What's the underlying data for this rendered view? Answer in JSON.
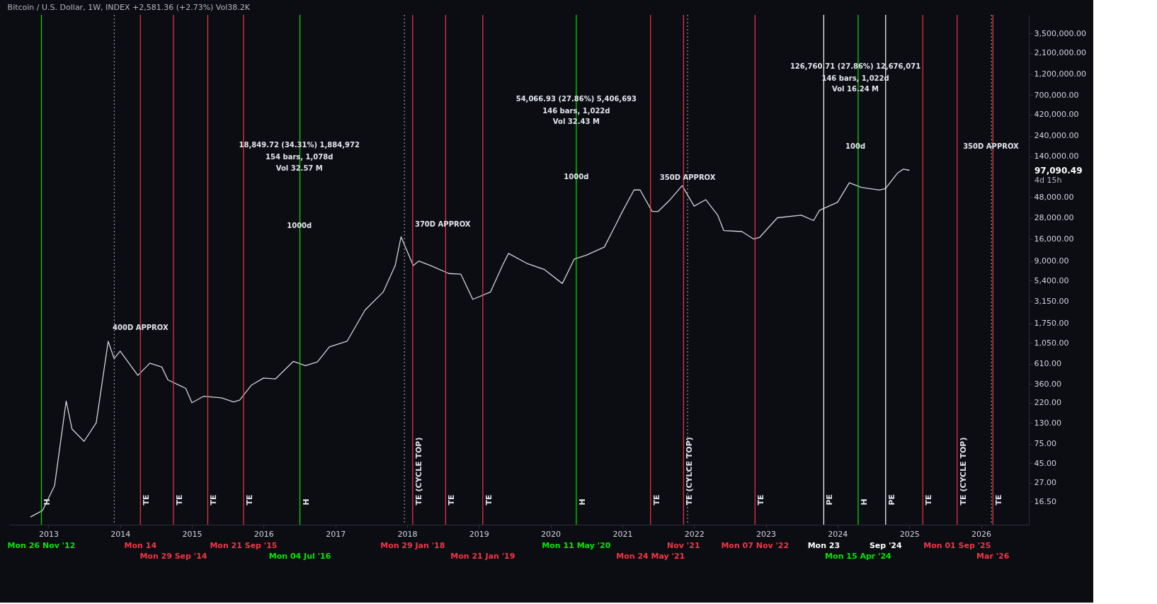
{
  "chart_data": {
    "type": "line",
    "title": "Bitcoin / U.S. Dollar, 1W, INDEX  +2,581.36 (+2.73%)  Vol38.2K",
    "x": [
      "2012-10",
      "2012-12",
      "2013-02",
      "2013-04",
      "2013-05",
      "2013-07",
      "2013-09",
      "2013-11",
      "2013-12",
      "2014-01",
      "2014-03",
      "2014-04",
      "2014-06",
      "2014-08",
      "2014-09",
      "2014-12",
      "2015-01",
      "2015-03",
      "2015-06",
      "2015-08",
      "2015-09",
      "2015-11",
      "2016-01",
      "2016-03",
      "2016-06",
      "2016-08",
      "2016-10",
      "2016-12",
      "2017-03",
      "2017-06",
      "2017-09",
      "2017-11",
      "2017-12",
      "2018-02",
      "2018-03",
      "2018-05",
      "2018-08",
      "2018-10",
      "2018-12",
      "2019-03",
      "2019-05",
      "2019-06",
      "2019-09",
      "2019-12",
      "2020-03",
      "2020-05",
      "2020-07",
      "2020-10",
      "2020-12",
      "2021-01",
      "2021-03",
      "2021-04",
      "2021-06",
      "2021-07",
      "2021-09",
      "2021-11",
      "2022-01",
      "2022-03",
      "2022-05",
      "2022-06",
      "2022-09",
      "2022-11",
      "2022-12",
      "2023-03",
      "2023-07",
      "2023-09",
      "2023-10",
      "2024-01",
      "2024-03",
      "2024-05",
      "2024-08",
      "2024-09",
      "2024-11",
      "2024-12",
      "2025-01"
    ],
    "series": [
      {
        "color": "#d1d4dc",
        "values": [
          11,
          13,
          25,
          230,
          110,
          80,
          130,
          1100,
          700,
          850,
          560,
          450,
          620,
          560,
          400,
          320,
          220,
          260,
          250,
          225,
          235,
          350,
          420,
          410,
          650,
          580,
          640,
          950,
          1100,
          2500,
          4000,
          8000,
          17000,
          8000,
          9000,
          8000,
          6500,
          6400,
          3300,
          4000,
          8000,
          11000,
          8500,
          7200,
          5000,
          9500,
          10500,
          13000,
          24000,
          33000,
          58000,
          58000,
          33000,
          33000,
          45000,
          65000,
          38000,
          45000,
          30000,
          20000,
          19500,
          16000,
          16800,
          28000,
          30000,
          26000,
          34000,
          42000,
          70000,
          62000,
          58000,
          60000,
          90000,
          100000,
          97090.49
        ]
      }
    ],
    "xlim": [
      "2012-06-15",
      "2026-09-01"
    ],
    "ylim": [
      9,
      5700000
    ],
    "log": "y",
    "yticks": [
      {
        "value": 16.5,
        "label": "16.50"
      },
      {
        "value": 27,
        "label": "27.00"
      },
      {
        "value": 45,
        "label": "45.00"
      },
      {
        "value": 75,
        "label": "75.00"
      },
      {
        "value": 130,
        "label": "130.00"
      },
      {
        "value": 220,
        "label": "220.00"
      },
      {
        "value": 360,
        "label": "360.00"
      },
      {
        "value": 610,
        "label": "610.00"
      },
      {
        "value": 1050,
        "label": "1,050.00"
      },
      {
        "value": 1750,
        "label": "1,750.00"
      },
      {
        "value": 3150,
        "label": "3,150.00"
      },
      {
        "value": 5400,
        "label": "5,400.00"
      },
      {
        "value": 9000,
        "label": "9,000.00"
      },
      {
        "value": 16000,
        "label": "16,000.00"
      },
      {
        "value": 28000,
        "label": "28,000.00"
      },
      {
        "value": 48000,
        "label": "48,000.00"
      },
      {
        "value": 140000,
        "label": "140,000.00"
      },
      {
        "value": 240000,
        "label": "240,000.00"
      },
      {
        "value": 420000,
        "label": "420,000.00"
      },
      {
        "value": 700000,
        "label": "700,000.00"
      },
      {
        "value": 1200000,
        "label": "1,200,000.00"
      },
      {
        "value": 2100000,
        "label": "2,100,000.00"
      },
      {
        "value": 3500000,
        "label": "3,500,000.00"
      }
    ],
    "xticks": [
      {
        "value": "2013-01-01",
        "label": "2013"
      },
      {
        "value": "2014-01-01",
        "label": "2014"
      },
      {
        "value": "2015-01-01",
        "label": "2015"
      },
      {
        "value": "2016-01-01",
        "label": "2016"
      },
      {
        "value": "2017-01-01",
        "label": "2017"
      },
      {
        "value": "2018-01-01",
        "label": "2018"
      },
      {
        "value": "2019-01-01",
        "label": "2019"
      },
      {
        "value": "2020-01-01",
        "label": "2020"
      },
      {
        "value": "2021-01-01",
        "label": "2021"
      },
      {
        "value": "2022-01-01",
        "label": "2022"
      },
      {
        "value": "2023-01-01",
        "label": "2023"
      },
      {
        "value": "2024-01-01",
        "label": "2024"
      },
      {
        "value": "2025-01-01",
        "label": "2025"
      },
      {
        "value": "2026-01-01",
        "label": "2026"
      }
    ],
    "grid": false,
    "line_style": "solid",
    "ref_lines": [
      {
        "axis": "x",
        "value": "2012-11-26",
        "label": "Mon 26 Nov '12",
        "color": "#00e600"
      },
      {
        "axis": "x",
        "value": "2013-12-02",
        "label": null,
        "color": "#9598a1",
        "line_style": "dotted"
      },
      {
        "axis": "x",
        "value": "2014-04-14",
        "label": "Mon 14",
        "color": "#f23645"
      },
      {
        "axis": "x",
        "value": "2014-09-29",
        "label": "Mon 29 Sep '14",
        "color": "#f23645"
      },
      {
        "axis": "x",
        "value": "2015-03-23",
        "label": null,
        "color": "#f23645"
      },
      {
        "axis": "x",
        "value": "2015-09-21",
        "label": "Mon 21 Sep '15",
        "color": "#f23645"
      },
      {
        "axis": "x",
        "value": "2016-07-04",
        "label": "Mon 04 Jul '16",
        "color": "#00e600"
      },
      {
        "axis": "x",
        "value": "2017-12-18",
        "label": null,
        "color": "#9598a1",
        "line_style": "dotted"
      },
      {
        "axis": "x",
        "value": "2018-01-29",
        "label": "Mon 29 Jan '18",
        "color": "#f23645"
      },
      {
        "axis": "x",
        "value": "2018-07-16",
        "label": null,
        "color": "#f23645"
      },
      {
        "axis": "x",
        "value": "2019-01-21",
        "label": "Mon 21 Jan '19",
        "color": "#f23645"
      },
      {
        "axis": "x",
        "value": "2020-05-11",
        "label": "Mon 11 May '20",
        "color": "#00e600"
      },
      {
        "axis": "x",
        "value": "2021-05-24",
        "label": "Mon 24 May '21",
        "color": "#f23645"
      },
      {
        "axis": "x",
        "value": "2021-11-08",
        "label": "Nov '21",
        "color": "#f23645"
      },
      {
        "axis": "x",
        "value": "2021-11-29",
        "label": null,
        "color": "#9598a1",
        "line_style": "dotted"
      },
      {
        "axis": "x",
        "value": "2022-11-07",
        "label": "Mon 07 Nov '22",
        "color": "#f23645"
      },
      {
        "axis": "x",
        "value": "2023-10-23",
        "label": "Mon 23",
        "color": "#ffffff"
      },
      {
        "axis": "x",
        "value": "2024-04-15",
        "label": "Mon 15 Apr '24",
        "color": "#00e600"
      },
      {
        "axis": "x",
        "value": "2024-09-02",
        "label": "Sep '24",
        "color": "#ffffff"
      },
      {
        "axis": "x",
        "value": "2025-03-10",
        "label": null,
        "color": "#f23645"
      },
      {
        "axis": "x",
        "value": "2025-09-01",
        "label": "Mon 01 Sep '25",
        "color": "#f23645"
      },
      {
        "axis": "x",
        "value": "2026-02-23",
        "label": null,
        "color": "#9598a1",
        "line_style": "dotted"
      },
      {
        "axis": "x",
        "value": "2026-03-02",
        "label": "Mar '26",
        "color": "#f23645"
      }
    ],
    "annotations": [
      {
        "text": "18,849.72 (34.31%) 1,884,972",
        "x": "2016-07-01",
        "y": 186000
      },
      {
        "text": "154 bars, 1,078d",
        "x": "2016-07-01",
        "y": 137000
      },
      {
        "text": "Vol 32.57 M",
        "x": "2016-07-01",
        "y": 102000
      },
      {
        "text": "54,066.93 (27.86%) 5,406,693",
        "x": "2020-05-11",
        "y": 624000
      },
      {
        "text": "146 bars, 1,022d",
        "x": "2020-05-11",
        "y": 459000
      },
      {
        "text": "Vol 32.43 M",
        "x": "2020-05-11",
        "y": 344000
      },
      {
        "text": "126,760.71 (27.86%) 12,676,071",
        "x": "2024-04-01",
        "y": 1470000
      },
      {
        "text": "146 bars, 1,022d",
        "x": "2024-04-01",
        "y": 1080000
      },
      {
        "text": "Vol 16.24 M",
        "x": "2024-04-01",
        "y": 805000
      },
      {
        "text": "1000d",
        "x": "2016-07-01",
        "y": 22800
      },
      {
        "text": "1000d",
        "x": "2020-05-11",
        "y": 82000
      },
      {
        "text": "100d",
        "x": "2024-04-01",
        "y": 180000
      },
      {
        "text": "400D APPROX",
        "x": "2014-04-14",
        "y": 1570
      },
      {
        "text": "370D APPROX",
        "x": "2018-07-01",
        "y": 23600
      },
      {
        "text": "350D APPROX",
        "x": "2021-11-29",
        "y": 80600
      },
      {
        "text": "350D APPROX",
        "x": "2026-02-20",
        "y": 180000
      },
      "97,090.49",
      "4d 15h",
      {
        "text": "H",
        "x": "2012-11-26",
        "y": 15
      },
      {
        "text": "TE",
        "x": "2014-04-14",
        "y": 15
      },
      {
        "text": "TE",
        "x": "2014-09-29",
        "y": 15
      },
      {
        "text": "TE",
        "x": "2015-03-23",
        "y": 15
      },
      {
        "text": "TE",
        "x": "2015-09-21",
        "y": 15
      },
      {
        "text": "H",
        "x": "2016-07-04",
        "y": 15
      },
      {
        "text": "TE (CYCLE TOP)",
        "x": "2018-01-29",
        "y": 15
      },
      {
        "text": "TE",
        "x": "2018-07-16",
        "y": 15
      },
      {
        "text": "TE",
        "x": "2019-01-21",
        "y": 15
      },
      {
        "text": "H",
        "x": "2020-05-11",
        "y": 15
      },
      {
        "text": "TE",
        "x": "2021-05-24",
        "y": 15
      },
      {
        "text": "TE (CYLCE TOP)",
        "x": "2021-11-08",
        "y": 15
      },
      {
        "text": "TE",
        "x": "2022-11-07",
        "y": 15
      },
      {
        "text": "PE",
        "x": "2023-10-23",
        "y": 15
      },
      {
        "text": "H",
        "x": "2024-04-15",
        "y": 15
      },
      {
        "text": "PE",
        "x": "2024-09-02",
        "y": 15
      },
      {
        "text": "TE",
        "x": "2025-03-10",
        "y": 15
      },
      {
        "text": "TE (CYCLE TOP)",
        "x": "2025-09-01",
        "y": 15
      },
      {
        "text": "TE",
        "x": "2026-03-02",
        "y": 15
      }
    ]
  }
}
